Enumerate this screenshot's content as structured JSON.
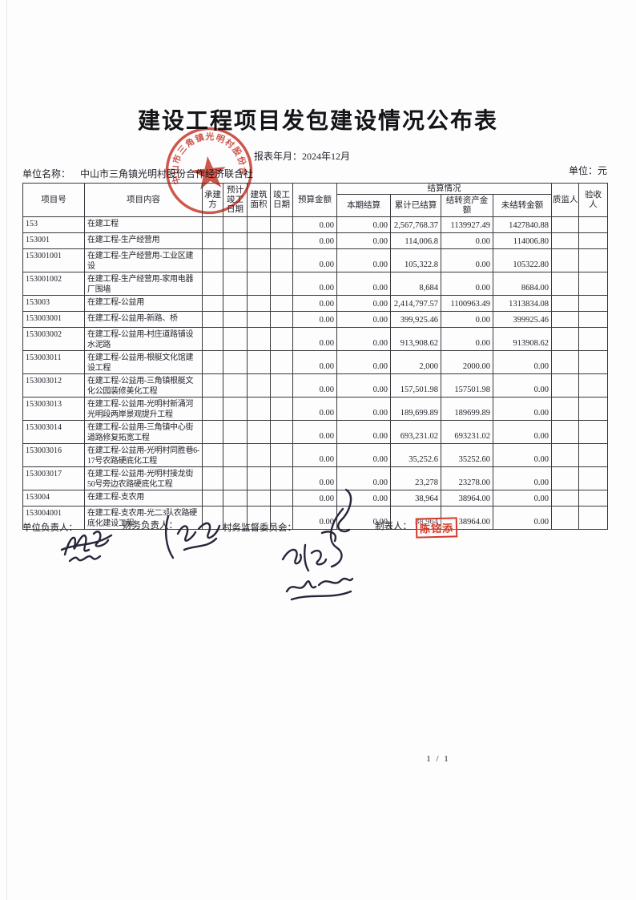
{
  "page": {
    "title": "建设工程项目发包建设情况公布表",
    "report_month_label": "报表年月：",
    "report_month": "2024年12月",
    "unit_name_label": "单位名称：",
    "unit_name": "中山市三角镇光明村股份合作经济联合社",
    "currency_line": "单位：元",
    "page_number": "1 / 1"
  },
  "stamp": {
    "text": "中山市三角镇光明村股份合作经济联合社",
    "color": "#c8392b"
  },
  "table": {
    "headers": {
      "project_id": "项目号",
      "project_content": "项目内容",
      "contractor": "承建方",
      "expected_completion": "预计竣工日期",
      "building_area": "建筑面积",
      "completion_date": "竣工日期",
      "budget": "预算金额",
      "settlement_group": "结算情况",
      "current_settlement": "本期结算",
      "cumulative_settlement": "累计已结算",
      "transferred_assets": "结转资产金额",
      "untransferred": "未结转金额",
      "quality_supervisor": "质监人",
      "acceptor": "验收人"
    },
    "rows": [
      {
        "id": "153",
        "content": "在建工程",
        "budget": "0.00",
        "current": "0.00",
        "cumulative": "2,567,768.37",
        "transferred": "1139927.49",
        "untransferred": "1427840.88"
      },
      {
        "id": "153001",
        "content": "在建工程-生产经营用",
        "budget": "0.00",
        "current": "0.00",
        "cumulative": "114,006.8",
        "transferred": "0.00",
        "untransferred": "114006.80"
      },
      {
        "id": "153001001",
        "content": "在建工程-生产经营用-工业区建设",
        "budget": "0.00",
        "current": "0.00",
        "cumulative": "105,322.8",
        "transferred": "0.00",
        "untransferred": "105322.80"
      },
      {
        "id": "153001002",
        "content": "在建工程-生产经营用-家用电器厂围墙",
        "budget": "0.00",
        "current": "0.00",
        "cumulative": "8,684",
        "transferred": "0.00",
        "untransferred": "8684.00"
      },
      {
        "id": "153003",
        "content": "在建工程-公益用",
        "budget": "0.00",
        "current": "0.00",
        "cumulative": "2,414,797.57",
        "transferred": "1100963.49",
        "untransferred": "1313834.08"
      },
      {
        "id": "153003001",
        "content": "在建工程-公益用-新路、桥",
        "budget": "0.00",
        "current": "0.00",
        "cumulative": "399,925.46",
        "transferred": "0.00",
        "untransferred": "399925.46"
      },
      {
        "id": "153003002",
        "content": "在建工程-公益用-村庄道路铺设水泥路",
        "budget": "0.00",
        "current": "0.00",
        "cumulative": "913,908.62",
        "transferred": "0.00",
        "untransferred": "913908.62"
      },
      {
        "id": "153003011",
        "content": "在建工程-公益用-根艇文化馆建设工程",
        "budget": "0.00",
        "current": "0.00",
        "cumulative": "2,000",
        "transferred": "2000.00",
        "untransferred": "0.00"
      },
      {
        "id": "153003012",
        "content": "在建工程-公益用-三角镇根艇文化公园装修美化工程",
        "budget": "0.00",
        "current": "0.00",
        "cumulative": "157,501.98",
        "transferred": "157501.98",
        "untransferred": "0.00"
      },
      {
        "id": "153003013",
        "content": "在建工程-公益用-光明村新涌河光明段两岸景观提升工程",
        "budget": "0.00",
        "current": "0.00",
        "cumulative": "189,699.89",
        "transferred": "189699.89",
        "untransferred": "0.00"
      },
      {
        "id": "153003014",
        "content": "在建工程-公益用-三角镇中心街道路修复拓宽工程",
        "budget": "0.00",
        "current": "0.00",
        "cumulative": "693,231.02",
        "transferred": "693231.02",
        "untransferred": "0.00"
      },
      {
        "id": "153003016",
        "content": "在建工程-公益用-光明村同胜巷6-17号农路硬底化工程",
        "budget": "0.00",
        "current": "0.00",
        "cumulative": "35,252.6",
        "transferred": "35252.60",
        "untransferred": "0.00"
      },
      {
        "id": "153003017",
        "content": "在建工程-公益用-光明村接龙街50号旁边农路硬底化工程",
        "budget": "0.00",
        "current": "0.00",
        "cumulative": "23,278",
        "transferred": "23278.00",
        "untransferred": "0.00"
      },
      {
        "id": "153004",
        "content": "在建工程-支农用",
        "budget": "0.00",
        "current": "0.00",
        "cumulative": "38,964",
        "transferred": "38964.00",
        "untransferred": "0.00"
      },
      {
        "id": "153004001",
        "content": "在建工程-支农用-光二3队农路硬底化建设工程",
        "budget": "0.00",
        "current": "0.00",
        "cumulative": "38,964",
        "transferred": "38964.00",
        "untransferred": "0.00"
      }
    ]
  },
  "footer": {
    "unit_head_label": "单位负责人：",
    "finance_head_label": "财务负责人：",
    "village_committee_label": "村务监督委员会：",
    "preparer_label": "制表人：",
    "preparer_stamp": "陈铭添"
  },
  "colors": {
    "seal_red": "#c8392b",
    "preparer_stamp_red": "#d23b2c",
    "signature_ink": "#26263a"
  }
}
